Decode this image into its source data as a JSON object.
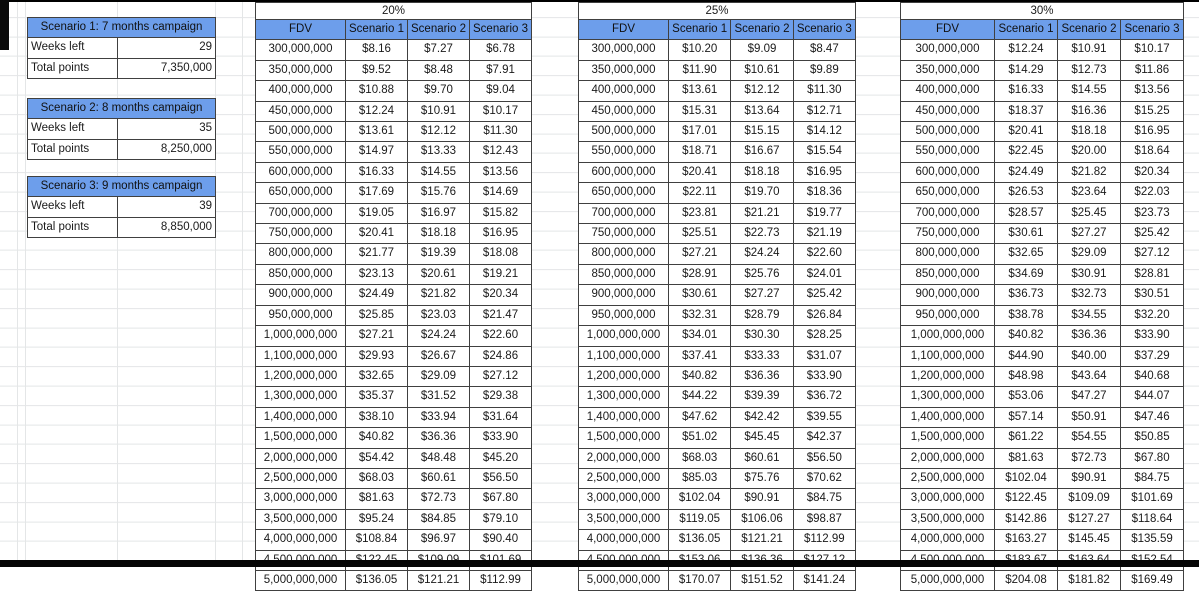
{
  "sheet": {
    "scenario_boxes": [
      {
        "title": "Scenario 1: 7 months campaign",
        "rows": [
          [
            "Weeks left",
            "29"
          ],
          [
            "Total points",
            "7,350,000"
          ]
        ]
      },
      {
        "title": "Scenario 2: 8 months campaign",
        "rows": [
          [
            "Weeks left",
            "35"
          ],
          [
            "Total points",
            "8,250,000"
          ]
        ]
      },
      {
        "title": "Scenario 3: 9 months campaign",
        "rows": [
          [
            "Weeks left",
            "39"
          ],
          [
            "Total points",
            "8,850,000"
          ]
        ]
      }
    ],
    "column_headers": [
      "FDV",
      "Scenario 1",
      "Scenario 2",
      "Scenario 3"
    ],
    "fdv_values": [
      "300,000,000",
      "350,000,000",
      "400,000,000",
      "450,000,000",
      "500,000,000",
      "550,000,000",
      "600,000,000",
      "650,000,000",
      "700,000,000",
      "750,000,000",
      "800,000,000",
      "850,000,000",
      "900,000,000",
      "950,000,000",
      "1,000,000,000",
      "1,100,000,000",
      "1,200,000,000",
      "1,300,000,000",
      "1,400,000,000",
      "1,500,000,000",
      "2,000,000,000",
      "2,500,000,000",
      "3,000,000,000",
      "3,500,000,000",
      "4,000,000,000",
      "4,500,000,000",
      "5,000,000,000"
    ],
    "rate_tables": [
      {
        "rate": "20%",
        "prices": [
          [
            "$8.16",
            "$7.27",
            "$6.78"
          ],
          [
            "$9.52",
            "$8.48",
            "$7.91"
          ],
          [
            "$10.88",
            "$9.70",
            "$9.04"
          ],
          [
            "$12.24",
            "$10.91",
            "$10.17"
          ],
          [
            "$13.61",
            "$12.12",
            "$11.30"
          ],
          [
            "$14.97",
            "$13.33",
            "$12.43"
          ],
          [
            "$16.33",
            "$14.55",
            "$13.56"
          ],
          [
            "$17.69",
            "$15.76",
            "$14.69"
          ],
          [
            "$19.05",
            "$16.97",
            "$15.82"
          ],
          [
            "$20.41",
            "$18.18",
            "$16.95"
          ],
          [
            "$21.77",
            "$19.39",
            "$18.08"
          ],
          [
            "$23.13",
            "$20.61",
            "$19.21"
          ],
          [
            "$24.49",
            "$21.82",
            "$20.34"
          ],
          [
            "$25.85",
            "$23.03",
            "$21.47"
          ],
          [
            "$27.21",
            "$24.24",
            "$22.60"
          ],
          [
            "$29.93",
            "$26.67",
            "$24.86"
          ],
          [
            "$32.65",
            "$29.09",
            "$27.12"
          ],
          [
            "$35.37",
            "$31.52",
            "$29.38"
          ],
          [
            "$38.10",
            "$33.94",
            "$31.64"
          ],
          [
            "$40.82",
            "$36.36",
            "$33.90"
          ],
          [
            "$54.42",
            "$48.48",
            "$45.20"
          ],
          [
            "$68.03",
            "$60.61",
            "$56.50"
          ],
          [
            "$81.63",
            "$72.73",
            "$67.80"
          ],
          [
            "$95.24",
            "$84.85",
            "$79.10"
          ],
          [
            "$108.84",
            "$96.97",
            "$90.40"
          ],
          [
            "$122.45",
            "$109.09",
            "$101.69"
          ],
          [
            "$136.05",
            "$121.21",
            "$112.99"
          ]
        ]
      },
      {
        "rate": "25%",
        "prices": [
          [
            "$10.20",
            "$9.09",
            "$8.47"
          ],
          [
            "$11.90",
            "$10.61",
            "$9.89"
          ],
          [
            "$13.61",
            "$12.12",
            "$11.30"
          ],
          [
            "$15.31",
            "$13.64",
            "$12.71"
          ],
          [
            "$17.01",
            "$15.15",
            "$14.12"
          ],
          [
            "$18.71",
            "$16.67",
            "$15.54"
          ],
          [
            "$20.41",
            "$18.18",
            "$16.95"
          ],
          [
            "$22.11",
            "$19.70",
            "$18.36"
          ],
          [
            "$23.81",
            "$21.21",
            "$19.77"
          ],
          [
            "$25.51",
            "$22.73",
            "$21.19"
          ],
          [
            "$27.21",
            "$24.24",
            "$22.60"
          ],
          [
            "$28.91",
            "$25.76",
            "$24.01"
          ],
          [
            "$30.61",
            "$27.27",
            "$25.42"
          ],
          [
            "$32.31",
            "$28.79",
            "$26.84"
          ],
          [
            "$34.01",
            "$30.30",
            "$28.25"
          ],
          [
            "$37.41",
            "$33.33",
            "$31.07"
          ],
          [
            "$40.82",
            "$36.36",
            "$33.90"
          ],
          [
            "$44.22",
            "$39.39",
            "$36.72"
          ],
          [
            "$47.62",
            "$42.42",
            "$39.55"
          ],
          [
            "$51.02",
            "$45.45",
            "$42.37"
          ],
          [
            "$68.03",
            "$60.61",
            "$56.50"
          ],
          [
            "$85.03",
            "$75.76",
            "$70.62"
          ],
          [
            "$102.04",
            "$90.91",
            "$84.75"
          ],
          [
            "$119.05",
            "$106.06",
            "$98.87"
          ],
          [
            "$136.05",
            "$121.21",
            "$112.99"
          ],
          [
            "$153.06",
            "$136.36",
            "$127.12"
          ],
          [
            "$170.07",
            "$151.52",
            "$141.24"
          ]
        ]
      },
      {
        "rate": "30%",
        "prices": [
          [
            "$12.24",
            "$10.91",
            "$10.17"
          ],
          [
            "$14.29",
            "$12.73",
            "$11.86"
          ],
          [
            "$16.33",
            "$14.55",
            "$13.56"
          ],
          [
            "$18.37",
            "$16.36",
            "$15.25"
          ],
          [
            "$20.41",
            "$18.18",
            "$16.95"
          ],
          [
            "$22.45",
            "$20.00",
            "$18.64"
          ],
          [
            "$24.49",
            "$21.82",
            "$20.34"
          ],
          [
            "$26.53",
            "$23.64",
            "$22.03"
          ],
          [
            "$28.57",
            "$25.45",
            "$23.73"
          ],
          [
            "$30.61",
            "$27.27",
            "$25.42"
          ],
          [
            "$32.65",
            "$29.09",
            "$27.12"
          ],
          [
            "$34.69",
            "$30.91",
            "$28.81"
          ],
          [
            "$36.73",
            "$32.73",
            "$30.51"
          ],
          [
            "$38.78",
            "$34.55",
            "$32.20"
          ],
          [
            "$40.82",
            "$36.36",
            "$33.90"
          ],
          [
            "$44.90",
            "$40.00",
            "$37.29"
          ],
          [
            "$48.98",
            "$43.64",
            "$40.68"
          ],
          [
            "$53.06",
            "$47.27",
            "$44.07"
          ],
          [
            "$57.14",
            "$50.91",
            "$47.46"
          ],
          [
            "$61.22",
            "$54.55",
            "$50.85"
          ],
          [
            "$81.63",
            "$72.73",
            "$67.80"
          ],
          [
            "$102.04",
            "$90.91",
            "$84.75"
          ],
          [
            "$122.45",
            "$109.09",
            "$101.69"
          ],
          [
            "$142.86",
            "$127.27",
            "$118.64"
          ],
          [
            "$163.27",
            "$145.45",
            "$135.59"
          ],
          [
            "$183.67",
            "$163.64",
            "$152.54"
          ],
          [
            "$204.08",
            "$181.82",
            "$169.49"
          ]
        ]
      }
    ],
    "colors": {
      "header_blue": "#6d9eeb",
      "grid_line": "#e4e6e7",
      "cell_border": "#404040",
      "text": "#1a1a1a"
    }
  }
}
